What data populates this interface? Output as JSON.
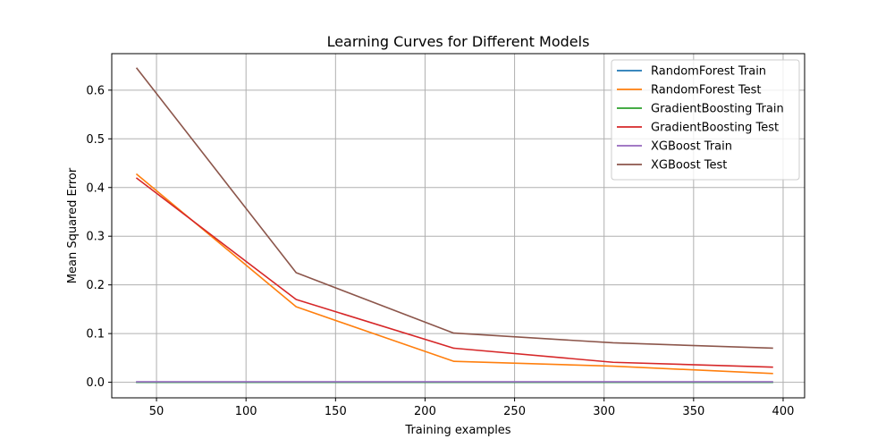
{
  "chart_data": {
    "type": "line",
    "title": "Learning Curves for Different Models",
    "xlabel": "Training examples",
    "ylabel": "Mean Squared Error",
    "xlim": [
      25,
      412
    ],
    "ylim": [
      -0.032,
      0.675
    ],
    "xticks": [
      50,
      100,
      150,
      200,
      250,
      300,
      350,
      400
    ],
    "yticks": [
      0.0,
      0.1,
      0.2,
      0.3,
      0.4,
      0.5,
      0.6
    ],
    "grid": true,
    "legend_position": "top-right",
    "x": [
      39,
      128,
      216,
      305,
      394
    ],
    "series": [
      {
        "name": "RandomForest Train",
        "color": "#1f77b4",
        "values": [
          0.0,
          0.0,
          0.0,
          0.0,
          0.0
        ]
      },
      {
        "name": "RandomForest Test",
        "color": "#ff7f0e",
        "values": [
          0.427,
          0.155,
          0.043,
          0.033,
          0.018
        ]
      },
      {
        "name": "GradientBoosting Train",
        "color": "#2ca02c",
        "values": [
          0.0,
          0.0,
          0.0,
          0.0,
          0.0
        ]
      },
      {
        "name": "GradientBoosting Test",
        "color": "#d62728",
        "values": [
          0.419,
          0.17,
          0.07,
          0.041,
          0.031
        ]
      },
      {
        "name": "XGBoost Train",
        "color": "#9467bd",
        "values": [
          0.001,
          0.001,
          0.001,
          0.001,
          0.001
        ]
      },
      {
        "name": "XGBoost Test",
        "color": "#8c564b",
        "values": [
          0.645,
          0.225,
          0.101,
          0.081,
          0.07
        ]
      }
    ]
  }
}
